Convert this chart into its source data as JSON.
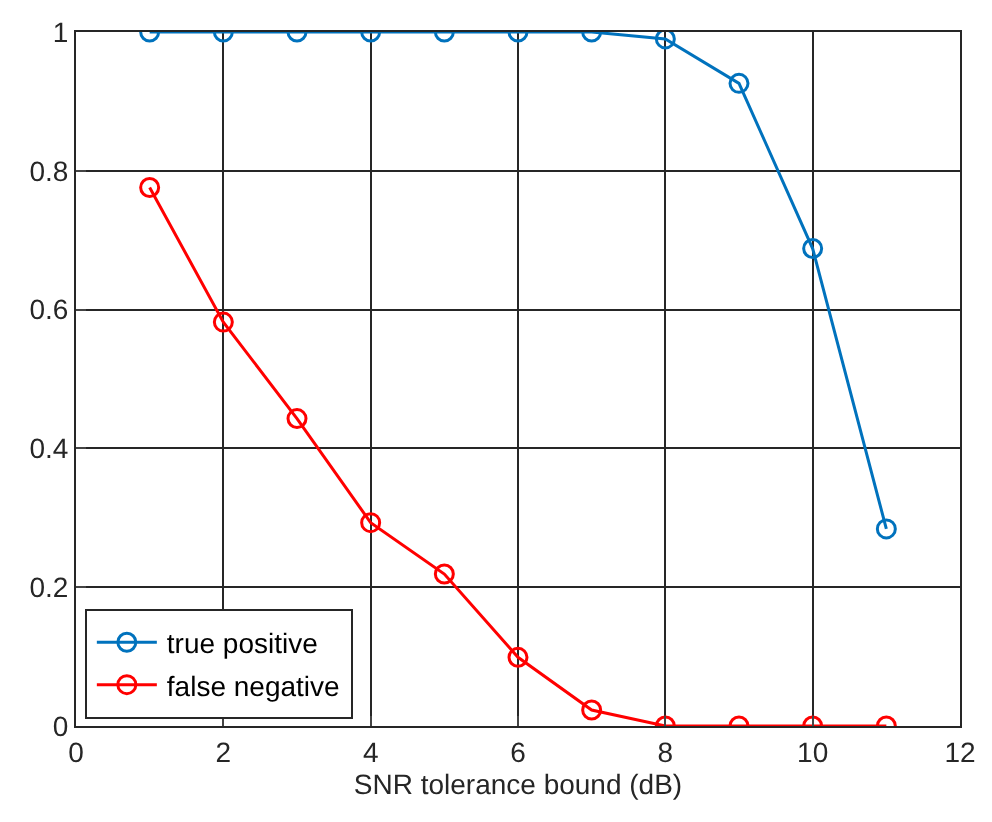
{
  "chart_data": {
    "type": "line",
    "xlabel": "SNR tolerance bound (dB)",
    "x": [
      1,
      2,
      3,
      4,
      5,
      6,
      7,
      8,
      9,
      10,
      11
    ],
    "series": [
      {
        "name": "true positive",
        "color": "#0072bd",
        "values": [
          1.0,
          1.0,
          1.0,
          1.0,
          1.0,
          1.0,
          1.0,
          0.99,
          0.926,
          0.688,
          0.284
        ]
      },
      {
        "name": "false negative",
        "color": "#ff0000",
        "values": [
          0.776,
          0.582,
          0.443,
          0.293,
          0.219,
          0.099,
          0.023,
          0.0,
          0.0,
          0.0,
          0.0
        ]
      }
    ],
    "xlim": [
      0,
      12
    ],
    "xticks": [
      0,
      2,
      4,
      6,
      8,
      10,
      12
    ],
    "ylim": [
      0,
      1
    ],
    "yticks": [
      0,
      0.2,
      0.4,
      0.6,
      0.8,
      1
    ],
    "grid": true,
    "legend": "bottom left",
    "marker": "circle",
    "line_style": "solid"
  }
}
